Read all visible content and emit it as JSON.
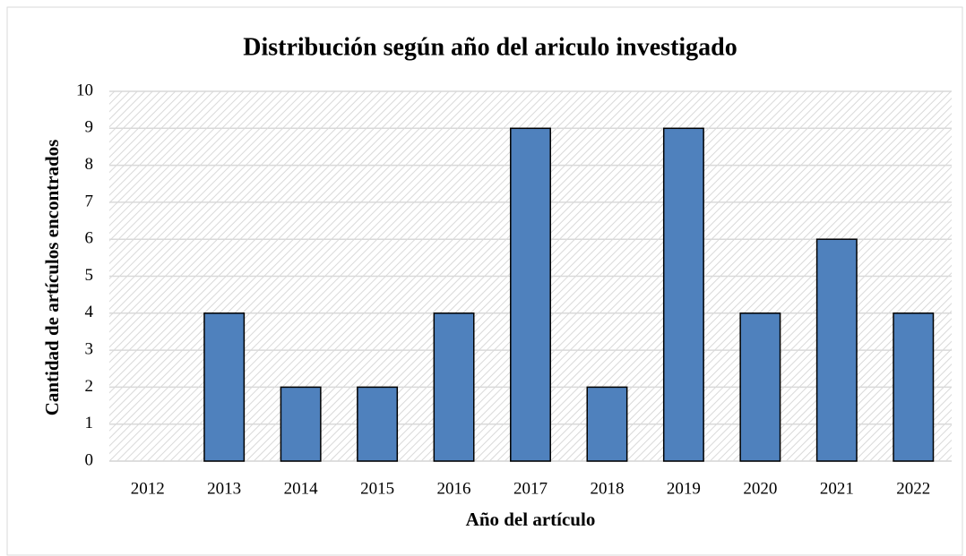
{
  "chart_data": {
    "type": "bar",
    "title": "Distribución según año del ariculo investigado",
    "x_label": "Año del artículo",
    "y_label": "Cantidad de artículos encontrados",
    "categories": [
      "2012",
      "2013",
      "2014",
      "2015",
      "2016",
      "2017",
      "2018",
      "2019",
      "2020",
      "2021",
      "2022"
    ],
    "values": [
      0,
      4,
      2,
      2,
      4,
      9,
      2,
      9,
      4,
      6,
      4
    ],
    "color": "#4f81bd",
    "ylim": [
      0,
      10
    ],
    "yticks": [
      0,
      1,
      2,
      3,
      4,
      5,
      6,
      7,
      8,
      9,
      10
    ],
    "grid": true
  }
}
